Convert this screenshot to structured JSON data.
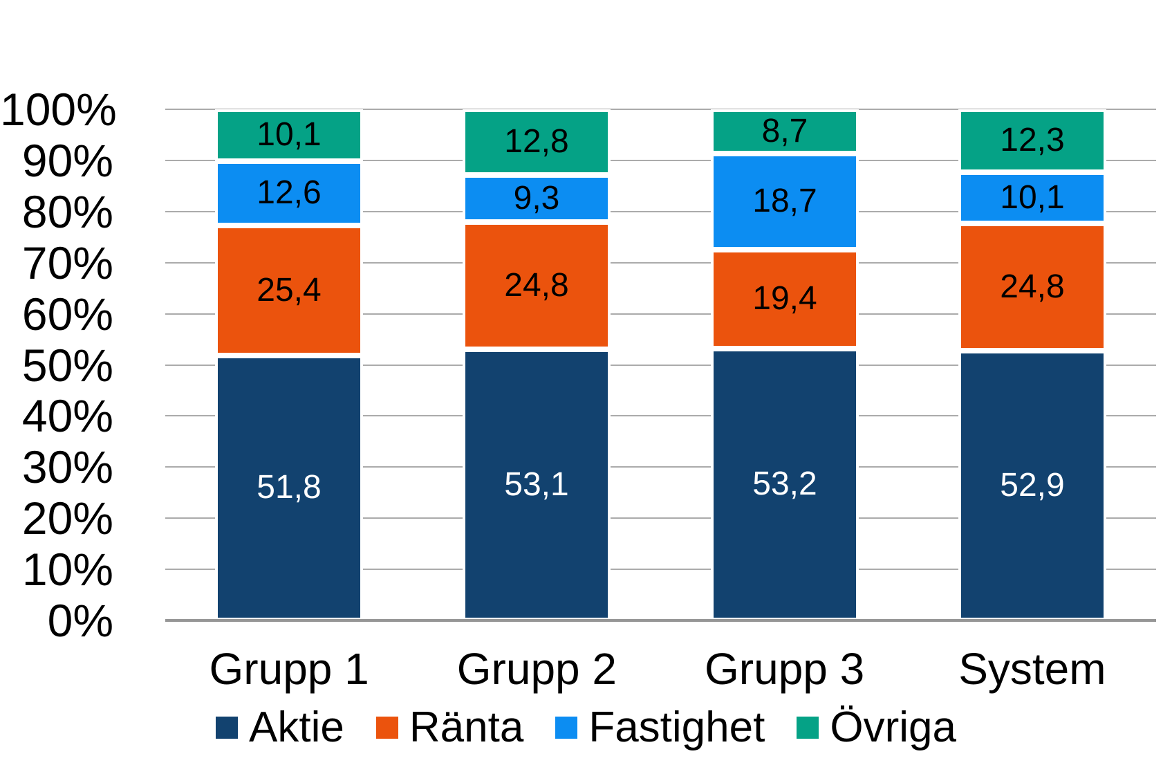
{
  "chart_data": {
    "type": "bar",
    "variant": "stacked-100-percent",
    "orientation": "vertical",
    "categories": [
      "Grupp 1",
      "Grupp 2",
      "Grupp 3",
      "System"
    ],
    "series": [
      {
        "name": "Aktie",
        "color": "#12426F",
        "label_color": "#FFFFFF",
        "values": [
          51.8,
          53.1,
          53.2,
          52.9
        ],
        "labels": [
          "51,8",
          "53,1",
          "53,2",
          "52,9"
        ]
      },
      {
        "name": "Ränta",
        "color": "#EB530D",
        "label_color": "#000000",
        "values": [
          25.4,
          24.8,
          19.4,
          24.8
        ],
        "labels": [
          "25,4",
          "24,8",
          "19,4",
          "24,8"
        ]
      },
      {
        "name": "Fastighet",
        "color": "#0C8DF2",
        "label_color": "#000000",
        "values": [
          12.6,
          9.3,
          18.7,
          10.1
        ],
        "labels": [
          "12,6",
          "9,3",
          "18,7",
          "10,1"
        ]
      },
      {
        "name": "Övriga",
        "color": "#05A286",
        "label_color": "#000000",
        "values": [
          10.1,
          12.8,
          8.7,
          12.3
        ],
        "labels": [
          "10,1",
          "12,8",
          "8,7",
          "12,3"
        ]
      }
    ],
    "y_axis": {
      "min": 0,
      "max": 100,
      "tick_step": 10,
      "tick_labels": [
        "0%",
        "10%",
        "20%",
        "30%",
        "40%",
        "50%",
        "60%",
        "70%",
        "80%",
        "90%",
        "100%"
      ]
    },
    "legend": {
      "position": "bottom",
      "entries": [
        "Aktie",
        "Ränta",
        "Fastighet",
        "Övriga"
      ]
    },
    "grid": true,
    "colors": {
      "background": "#FFFFFF",
      "gridline": "#ABABAB",
      "axis_line": "#969696",
      "segment_separator": "#FFFFFF"
    }
  }
}
